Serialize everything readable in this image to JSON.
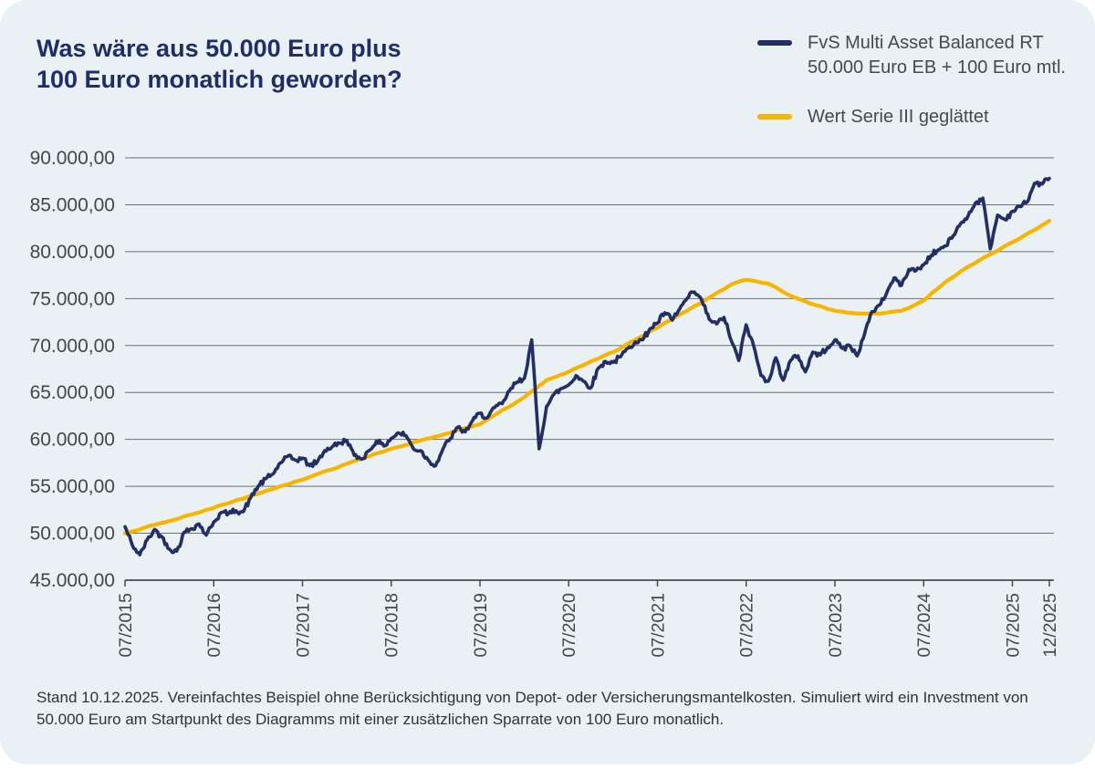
{
  "card": {
    "background": "#e9f1f4",
    "outside_background": "#ffffff"
  },
  "title": {
    "line1": "Was wäre aus 50.000 Euro plus",
    "line2": "100 Euro monatlich geworden?",
    "color": "#222c68"
  },
  "legend": {
    "position": "top-right",
    "items": [
      {
        "label_line1": "FvS Multi Asset Balanced RT",
        "label_line2": "50.000 Euro EB + 100 Euro mtl.",
        "color": "#232e66"
      },
      {
        "label_line1": "Wert Serie III geglättet",
        "label_line2": "",
        "color": "#f8b500"
      }
    ]
  },
  "footnote": {
    "text": "Stand 10.12.2025. Vereinfachtes Beispiel ohne Berücksichtigung von Depot- oder Versicherungsmantelkosten. Simuliert wird ein Investment von 50.000 Euro am Startpunkt des Diagramms mit einer zusätzlichen Sparrate von 100 Euro monatlich."
  },
  "colors": {
    "grid": "#6b7175",
    "axis": "#454b4f",
    "tick_label": "#41474c",
    "legend_text": "#45494e",
    "footnote_text": "#2e3337"
  },
  "chart_data": {
    "type": "line",
    "title": "Was wäre aus 50.000 Euro plus 100 Euro monatlich geworden?",
    "x_unit": "month",
    "x_start": "07/2015",
    "x_end": "12/2025",
    "grid": "horizontal",
    "legend_position": "top-right",
    "ylim": [
      45000,
      90000
    ],
    "y_ticks": [
      45000,
      50000,
      55000,
      60000,
      65000,
      70000,
      75000,
      80000,
      85000,
      90000
    ],
    "y_tick_labels": [
      "45.000,00",
      "50.000,00",
      "55.000,00",
      "60.000,00",
      "65.000,00",
      "70.000,00",
      "75.000,00",
      "80.000,00",
      "85.000,00",
      "90.000,00"
    ],
    "x_tick_month_index": [
      0,
      12,
      24,
      36,
      48,
      60,
      72,
      84,
      96,
      108,
      120,
      125
    ],
    "x_tick_labels": [
      "07/2015",
      "07/2016",
      "07/2017",
      "07/2018",
      "07/2019",
      "07/2020",
      "07/2021",
      "07/2022",
      "07/2023",
      "07/2024",
      "07/2025",
      "12/2025"
    ],
    "series": [
      {
        "name": "FvS Multi Asset Balanced RT 50.000 Euro EB + 100 Euro mtl.",
        "color": "#232e66",
        "style": "noisy",
        "stroke_width": 3.6,
        "values": [
          50700,
          48700,
          47700,
          49300,
          50400,
          49600,
          48300,
          48100,
          50100,
          50500,
          51000,
          49800,
          51200,
          52200,
          52100,
          52400,
          52300,
          53800,
          55000,
          55800,
          56300,
          57500,
          58200,
          57800,
          58000,
          57200,
          57600,
          58800,
          59200,
          59600,
          59900,
          58300,
          57900,
          58800,
          59800,
          59300,
          60100,
          60700,
          60400,
          59000,
          58800,
          57800,
          57200,
          59000,
          60100,
          61300,
          60800,
          62000,
          62800,
          62300,
          63400,
          63800,
          65200,
          66100,
          66500,
          70600,
          59000,
          63500,
          64800,
          65400,
          65800,
          66800,
          66200,
          65500,
          67600,
          68300,
          68200,
          68800,
          69700,
          70400,
          70600,
          71800,
          72400,
          73500,
          72700,
          73900,
          75000,
          75700,
          74800,
          72800,
          72300,
          73000,
          70500,
          68400,
          72200,
          70000,
          66800,
          66200,
          68700,
          66300,
          68400,
          68900,
          67200,
          69300,
          69000,
          69800,
          70600,
          69700,
          70000,
          68900,
          71200,
          73600,
          74300,
          75600,
          77200,
          76400,
          78100,
          78000,
          78600,
          79600,
          80200,
          80600,
          81700,
          83000,
          83800,
          85200,
          85700,
          80300,
          83900,
          83400,
          84300,
          84800,
          85300,
          87300,
          87200,
          87800
        ]
      },
      {
        "name": "Wert Serie III geglättet",
        "color": "#f8b500",
        "style": "smooth",
        "stroke_width": 4.2,
        "values": [
          50000,
          50200,
          50400,
          50700,
          50900,
          51100,
          51300,
          51500,
          51800,
          52000,
          52200,
          52500,
          52700,
          53000,
          53200,
          53500,
          53700,
          54000,
          54200,
          54500,
          54700,
          55000,
          55200,
          55500,
          55700,
          56000,
          56300,
          56600,
          56800,
          57100,
          57400,
          57700,
          57900,
          58200,
          58500,
          58700,
          59000,
          59200,
          59400,
          59700,
          59900,
          60100,
          60300,
          60500,
          60700,
          61000,
          61200,
          61400,
          61600,
          62100,
          62600,
          63100,
          63500,
          64000,
          64500,
          65100,
          65700,
          66300,
          66600,
          66900,
          67200,
          67600,
          67900,
          68300,
          68600,
          69000,
          69300,
          69700,
          70200,
          70600,
          71000,
          71500,
          71900,
          72400,
          72800,
          73300,
          73700,
          74200,
          74600,
          75100,
          75600,
          76000,
          76500,
          76800,
          77000,
          76900,
          76700,
          76600,
          76200,
          75700,
          75300,
          75000,
          74700,
          74400,
          74200,
          73900,
          73700,
          73600,
          73500,
          73400,
          73400,
          73400,
          73400,
          73500,
          73600,
          73700,
          74000,
          74400,
          74800,
          75500,
          76100,
          76800,
          77300,
          77900,
          78400,
          78800,
          79300,
          79700,
          80100,
          80600,
          81000,
          81400,
          81900,
          82300,
          82800,
          83300
        ]
      }
    ]
  }
}
